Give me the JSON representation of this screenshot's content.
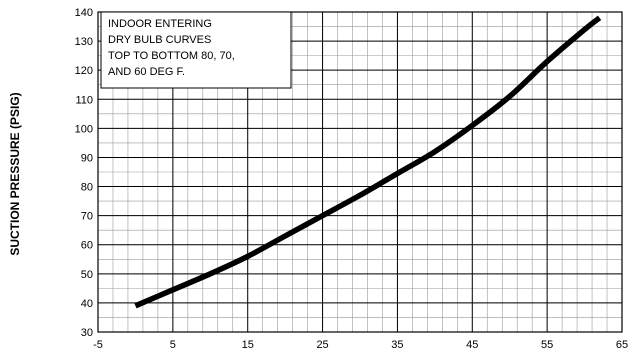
{
  "chart_data": {
    "type": "line",
    "title": "",
    "xlabel": "",
    "ylabel": "SUCTION PRESSURE (PSIG)",
    "xlim": [
      -5,
      65
    ],
    "ylim": [
      30,
      140
    ],
    "x_ticks": [
      -5,
      5,
      15,
      25,
      35,
      45,
      55,
      65
    ],
    "y_ticks": [
      30,
      40,
      50,
      60,
      70,
      80,
      90,
      100,
      110,
      120,
      130,
      140
    ],
    "grid": true,
    "x_minor_step": 2,
    "y_minor_step": 5,
    "annotation": {
      "lines": [
        "INDOOR ENTERING",
        "DRY BULB CURVES",
        "TOP TO BOTTOM 80, 70,",
        "AND 60 DEG F."
      ],
      "position": "top-left"
    },
    "series": [
      {
        "x": [
          0,
          5,
          10,
          15,
          20,
          25,
          30,
          35,
          40,
          45,
          50,
          55,
          60,
          62
        ],
        "y": [
          39,
          44.5,
          50,
          56,
          63,
          70,
          77,
          84.5,
          92,
          101,
          111,
          123,
          134,
          138
        ]
      }
    ]
  }
}
